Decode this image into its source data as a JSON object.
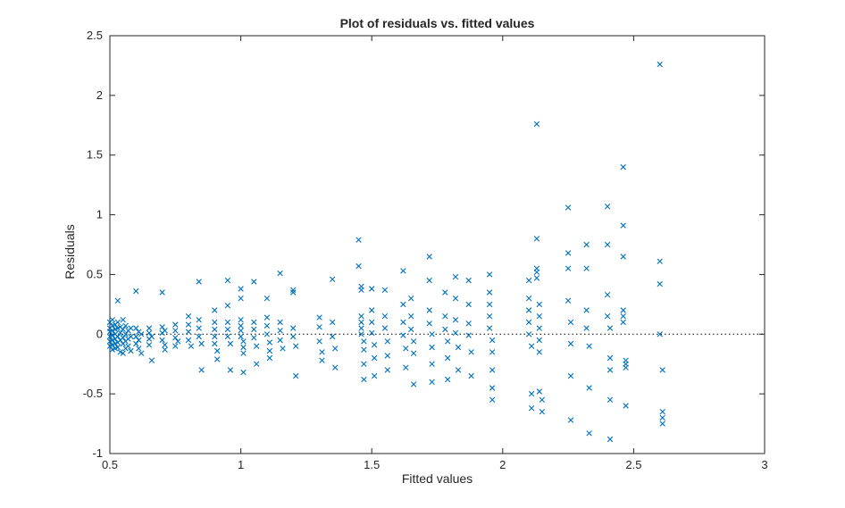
{
  "figure": {
    "title": "Plot of residuals vs. fitted values",
    "xlabel": "Fitted values",
    "ylabel": "Residuals"
  },
  "chart_data": {
    "type": "scatter",
    "title": "Plot of residuals vs. fitted values",
    "xlabel": "Fitted values",
    "ylabel": "Residuals",
    "xlim": [
      0.5,
      3
    ],
    "ylim": [
      -1,
      2.5
    ],
    "xticks": [
      0.5,
      1,
      1.5,
      2,
      2.5,
      3
    ],
    "xtick_labels": [
      "0.5",
      "1",
      "1.5",
      "2",
      "2.5",
      "3"
    ],
    "yticks": [
      -1,
      -0.5,
      0,
      0.5,
      1,
      1.5,
      2,
      2.5
    ],
    "ytick_labels": [
      "-1",
      "-0.5",
      "0",
      "0.5",
      "1",
      "1.5",
      "2",
      "2.5"
    ],
    "grid": false,
    "box": true,
    "marker": "x",
    "marker_color": "#0072BD",
    "axis_color": "#262626",
    "refline": {
      "y": 0,
      "style": "dotted",
      "color": "#000000"
    },
    "points": [
      [
        0.5,
        0.1
      ],
      [
        0.5,
        0.05
      ],
      [
        0.5,
        0.02
      ],
      [
        0.5,
        -0.02
      ],
      [
        0.5,
        -0.06
      ],
      [
        0.5,
        -0.1
      ],
      [
        0.51,
        0.12
      ],
      [
        0.51,
        0.07
      ],
      [
        0.51,
        0.03
      ],
      [
        0.51,
        -0.01
      ],
      [
        0.51,
        -0.05
      ],
      [
        0.51,
        -0.09
      ],
      [
        0.51,
        -0.13
      ],
      [
        0.52,
        0.08
      ],
      [
        0.52,
        0.04
      ],
      [
        0.52,
        0.0
      ],
      [
        0.52,
        -0.04
      ],
      [
        0.52,
        -0.08
      ],
      [
        0.52,
        -0.12
      ],
      [
        0.53,
        0.28
      ],
      [
        0.53,
        0.1
      ],
      [
        0.53,
        0.05
      ],
      [
        0.53,
        -0.02
      ],
      [
        0.53,
        -0.07
      ],
      [
        0.53,
        -0.11
      ],
      [
        0.54,
        0.06
      ],
      [
        0.54,
        0.01
      ],
      [
        0.54,
        -0.05
      ],
      [
        0.54,
        -0.15
      ],
      [
        0.55,
        0.12
      ],
      [
        0.55,
        0.04
      ],
      [
        0.55,
        -0.03
      ],
      [
        0.55,
        -0.08
      ],
      [
        0.55,
        -0.16
      ],
      [
        0.56,
        0.07
      ],
      [
        0.56,
        0.0
      ],
      [
        0.56,
        -0.06
      ],
      [
        0.56,
        -0.12
      ],
      [
        0.57,
        0.03
      ],
      [
        0.57,
        -0.04
      ],
      [
        0.57,
        -0.1
      ],
      [
        0.58,
        0.05
      ],
      [
        0.58,
        -0.02
      ],
      [
        0.58,
        -0.14
      ],
      [
        0.6,
        0.36
      ],
      [
        0.6,
        0.05
      ],
      [
        0.6,
        -0.02
      ],
      [
        0.6,
        -0.08
      ],
      [
        0.61,
        0.02
      ],
      [
        0.61,
        -0.05
      ],
      [
        0.61,
        -0.12
      ],
      [
        0.62,
        0.0
      ],
      [
        0.62,
        -0.16
      ],
      [
        0.65,
        0.05
      ],
      [
        0.65,
        0.01
      ],
      [
        0.65,
        -0.04
      ],
      [
        0.65,
        -0.09
      ],
      [
        0.66,
        -0.02
      ],
      [
        0.66,
        -0.22
      ],
      [
        0.7,
        0.35
      ],
      [
        0.7,
        0.06
      ],
      [
        0.7,
        0.01
      ],
      [
        0.7,
        -0.05
      ],
      [
        0.71,
        0.03
      ],
      [
        0.71,
        -0.09
      ],
      [
        0.71,
        -0.13
      ],
      [
        0.75,
        0.08
      ],
      [
        0.75,
        0.03
      ],
      [
        0.75,
        -0.03
      ],
      [
        0.75,
        -0.1
      ],
      [
        0.76,
        -0.06
      ],
      [
        0.8,
        0.15
      ],
      [
        0.8,
        0.08
      ],
      [
        0.8,
        0.02
      ],
      [
        0.8,
        -0.05
      ],
      [
        0.81,
        -0.1
      ],
      [
        0.84,
        0.44
      ],
      [
        0.84,
        0.12
      ],
      [
        0.84,
        0.05
      ],
      [
        0.84,
        -0.02
      ],
      [
        0.85,
        -0.08
      ],
      [
        0.85,
        -0.3
      ],
      [
        0.9,
        0.2
      ],
      [
        0.9,
        0.1
      ],
      [
        0.9,
        0.04
      ],
      [
        0.9,
        -0.02
      ],
      [
        0.9,
        -0.08
      ],
      [
        0.91,
        -0.14
      ],
      [
        0.91,
        -0.21
      ],
      [
        0.95,
        0.45
      ],
      [
        0.95,
        0.24
      ],
      [
        0.95,
        0.1
      ],
      [
        0.95,
        0.04
      ],
      [
        0.95,
        -0.02
      ],
      [
        0.96,
        -0.08
      ],
      [
        0.96,
        -0.3
      ],
      [
        1.0,
        0.38
      ],
      [
        1.0,
        0.3
      ],
      [
        1.0,
        0.12
      ],
      [
        1.0,
        0.07
      ],
      [
        1.0,
        0.03
      ],
      [
        1.0,
        -0.02
      ],
      [
        1.01,
        -0.06
      ],
      [
        1.01,
        -0.11
      ],
      [
        1.01,
        -0.16
      ],
      [
        1.01,
        -0.32
      ],
      [
        1.05,
        0.44
      ],
      [
        1.05,
        0.1
      ],
      [
        1.05,
        0.04
      ],
      [
        1.05,
        -0.03
      ],
      [
        1.06,
        -0.1
      ],
      [
        1.06,
        -0.25
      ],
      [
        1.1,
        0.3
      ],
      [
        1.1,
        0.14
      ],
      [
        1.1,
        0.07
      ],
      [
        1.1,
        0.0
      ],
      [
        1.11,
        -0.07
      ],
      [
        1.11,
        -0.14
      ],
      [
        1.11,
        -0.2
      ],
      [
        1.15,
        0.51
      ],
      [
        1.15,
        0.1
      ],
      [
        1.15,
        0.03
      ],
      [
        1.15,
        -0.05
      ],
      [
        1.16,
        -0.12
      ],
      [
        1.2,
        0.37
      ],
      [
        1.2,
        0.35
      ],
      [
        1.2,
        0.05
      ],
      [
        1.2,
        -0.02
      ],
      [
        1.21,
        -0.1
      ],
      [
        1.21,
        -0.35
      ],
      [
        1.3,
        0.14
      ],
      [
        1.3,
        0.06
      ],
      [
        1.3,
        -0.06
      ],
      [
        1.31,
        -0.15
      ],
      [
        1.31,
        -0.22
      ],
      [
        1.35,
        0.46
      ],
      [
        1.35,
        0.1
      ],
      [
        1.35,
        -0.02
      ],
      [
        1.36,
        -0.12
      ],
      [
        1.36,
        -0.28
      ],
      [
        1.45,
        0.79
      ],
      [
        1.45,
        0.57
      ],
      [
        1.46,
        0.4
      ],
      [
        1.46,
        0.37
      ],
      [
        1.46,
        0.15
      ],
      [
        1.46,
        0.1
      ],
      [
        1.46,
        0.05
      ],
      [
        1.46,
        0.0
      ],
      [
        1.47,
        -0.06
      ],
      [
        1.47,
        -0.13
      ],
      [
        1.47,
        -0.25
      ],
      [
        1.47,
        -0.38
      ],
      [
        1.5,
        0.38
      ],
      [
        1.5,
        0.2
      ],
      [
        1.5,
        0.1
      ],
      [
        1.5,
        0.01
      ],
      [
        1.51,
        -0.09
      ],
      [
        1.51,
        -0.2
      ],
      [
        1.51,
        -0.35
      ],
      [
        1.55,
        0.37
      ],
      [
        1.55,
        0.15
      ],
      [
        1.55,
        0.05
      ],
      [
        1.56,
        -0.06
      ],
      [
        1.56,
        -0.18
      ],
      [
        1.56,
        -0.3
      ],
      [
        1.62,
        0.53
      ],
      [
        1.62,
        0.25
      ],
      [
        1.62,
        0.1
      ],
      [
        1.62,
        -0.01
      ],
      [
        1.63,
        -0.12
      ],
      [
        1.63,
        -0.28
      ],
      [
        1.65,
        0.3
      ],
      [
        1.65,
        0.15
      ],
      [
        1.65,
        0.04
      ],
      [
        1.66,
        -0.06
      ],
      [
        1.66,
        -0.16
      ],
      [
        1.66,
        -0.42
      ],
      [
        1.72,
        0.65
      ],
      [
        1.72,
        0.45
      ],
      [
        1.72,
        0.2
      ],
      [
        1.72,
        0.09
      ],
      [
        1.73,
        0.0
      ],
      [
        1.73,
        -0.11
      ],
      [
        1.73,
        -0.25
      ],
      [
        1.73,
        -0.4
      ],
      [
        1.78,
        0.35
      ],
      [
        1.78,
        0.15
      ],
      [
        1.78,
        0.04
      ],
      [
        1.79,
        -0.06
      ],
      [
        1.79,
        -0.2
      ],
      [
        1.79,
        -0.38
      ],
      [
        1.82,
        0.48
      ],
      [
        1.82,
        0.3
      ],
      [
        1.82,
        0.12
      ],
      [
        1.82,
        0.01
      ],
      [
        1.83,
        -0.11
      ],
      [
        1.83,
        -0.3
      ],
      [
        1.87,
        0.45
      ],
      [
        1.87,
        0.25
      ],
      [
        1.87,
        0.09
      ],
      [
        1.87,
        -0.01
      ],
      [
        1.88,
        -0.15
      ],
      [
        1.88,
        -0.35
      ],
      [
        1.95,
        0.5
      ],
      [
        1.95,
        0.35
      ],
      [
        1.95,
        0.25
      ],
      [
        1.95,
        0.15
      ],
      [
        1.95,
        0.05
      ],
      [
        1.96,
        -0.05
      ],
      [
        1.96,
        -0.15
      ],
      [
        1.96,
        -0.3
      ],
      [
        1.96,
        -0.45
      ],
      [
        1.96,
        -0.55
      ],
      [
        2.1,
        0.45
      ],
      [
        2.1,
        0.3
      ],
      [
        2.1,
        0.2
      ],
      [
        2.1,
        0.1
      ],
      [
        2.1,
        0.0
      ],
      [
        2.11,
        -0.1
      ],
      [
        2.11,
        -0.5
      ],
      [
        2.11,
        -0.62
      ],
      [
        2.13,
        1.76
      ],
      [
        2.13,
        0.8
      ],
      [
        2.13,
        0.55
      ],
      [
        2.13,
        0.52
      ],
      [
        2.13,
        0.47
      ],
      [
        2.14,
        0.25
      ],
      [
        2.14,
        0.15
      ],
      [
        2.14,
        0.05
      ],
      [
        2.14,
        -0.05
      ],
      [
        2.14,
        -0.15
      ],
      [
        2.14,
        -0.48
      ],
      [
        2.15,
        -0.55
      ],
      [
        2.15,
        -0.65
      ],
      [
        2.25,
        1.06
      ],
      [
        2.25,
        0.68
      ],
      [
        2.25,
        0.55
      ],
      [
        2.25,
        0.28
      ],
      [
        2.26,
        0.1
      ],
      [
        2.26,
        -0.08
      ],
      [
        2.26,
        -0.35
      ],
      [
        2.26,
        -0.72
      ],
      [
        2.32,
        0.75
      ],
      [
        2.32,
        0.55
      ],
      [
        2.32,
        0.2
      ],
      [
        2.32,
        0.05
      ],
      [
        2.33,
        -0.1
      ],
      [
        2.33,
        -0.45
      ],
      [
        2.33,
        -0.83
      ],
      [
        2.4,
        1.07
      ],
      [
        2.4,
        0.75
      ],
      [
        2.4,
        0.33
      ],
      [
        2.4,
        0.15
      ],
      [
        2.41,
        0.05
      ],
      [
        2.41,
        -0.2
      ],
      [
        2.41,
        -0.3
      ],
      [
        2.41,
        -0.55
      ],
      [
        2.41,
        -0.88
      ],
      [
        2.46,
        1.4
      ],
      [
        2.46,
        0.91
      ],
      [
        2.46,
        0.65
      ],
      [
        2.46,
        0.2
      ],
      [
        2.46,
        0.15
      ],
      [
        2.46,
        0.1
      ],
      [
        2.47,
        -0.22
      ],
      [
        2.47,
        -0.25
      ],
      [
        2.47,
        -0.28
      ],
      [
        2.47,
        -0.6
      ],
      [
        2.6,
        2.26
      ],
      [
        2.6,
        0.61
      ],
      [
        2.6,
        0.42
      ],
      [
        2.6,
        0.0
      ],
      [
        2.61,
        -0.3
      ],
      [
        2.61,
        -0.65
      ],
      [
        2.61,
        -0.7
      ],
      [
        2.61,
        -0.75
      ]
    ]
  }
}
